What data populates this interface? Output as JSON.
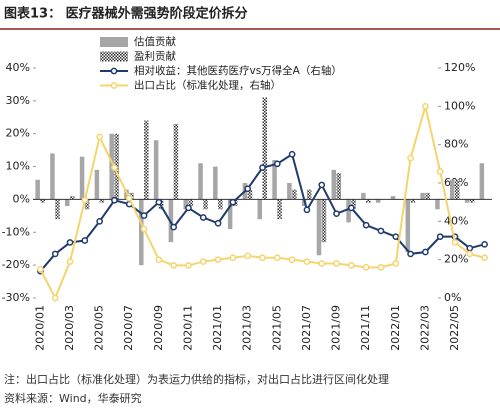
{
  "chart_data": {
    "type": "bar-line",
    "title": "图表13：  医疗器械外需强势阶段定价拆分",
    "categories": [
      "2020/01",
      null,
      "2020/03",
      null,
      "2020/05",
      null,
      "2020/07",
      null,
      "2020/09",
      null,
      "2020/11",
      null,
      "2021/01",
      null,
      "2021/03",
      null,
      "2021/05",
      null,
      "2021/07",
      null,
      "2021/09",
      null,
      "2021/11",
      null,
      "2022/01",
      null,
      "2022/03",
      null,
      "2022/05",
      null,
      null
    ],
    "series": [
      {
        "name": "估值贡献",
        "color": "#a6a6a6",
        "values": [
          6,
          14,
          -2,
          13,
          9,
          20,
          3,
          -20,
          18,
          -13,
          -3,
          11,
          10,
          -9,
          5,
          -6,
          12,
          5,
          -2,
          -17,
          9,
          -7,
          2,
          -1,
          1,
          -16,
          2,
          -3,
          6,
          -1,
          11
        ]
      },
      {
        "name": "盈利贡献",
        "color": "#333333",
        "values": [
          -1,
          -6,
          1,
          -3,
          -1,
          20,
          2,
          24,
          -3,
          23,
          -2,
          -3,
          -3,
          -2,
          3,
          31,
          -6,
          3,
          3,
          -13,
          8,
          -3,
          -1,
          0,
          0,
          -1,
          2,
          0,
          6,
          -1,
          0
        ]
      },
      {
        "name": "相对收益：其他医药医疗vs万得全A（右轴）",
        "color": "#1f3a6e",
        "axis": "y2",
        "values": [
          14,
          23,
          29,
          30,
          40,
          51,
          49,
          43,
          50,
          37,
          47,
          42,
          39,
          50,
          57,
          68,
          70,
          75,
          46,
          59,
          44,
          47,
          38,
          35,
          32,
          23,
          24,
          32,
          32,
          26,
          28
        ]
      },
      {
        "name": "出口占比（标准化处理，右轴）",
        "color": "#f5d46e",
        "axis": "y2",
        "values": [
          15,
          0,
          19,
          51,
          84,
          68,
          52,
          36,
          20,
          17,
          17,
          19,
          20,
          21,
          22,
          21,
          21,
          20,
          19,
          18,
          18,
          17,
          16,
          16,
          18,
          73,
          100,
          66,
          29,
          23,
          21
        ]
      }
    ],
    "ylim": [
      -30,
      40
    ],
    "yticks": [
      {
        "value": -30,
        "label": "-30%"
      },
      {
        "value": -20,
        "label": "-20%"
      },
      {
        "value": -10,
        "label": "-10%"
      },
      {
        "value": 0,
        "label": "0%"
      },
      {
        "value": 10,
        "label": "10%"
      },
      {
        "value": 20,
        "label": "20%"
      },
      {
        "value": 30,
        "label": "30%"
      },
      {
        "value": 40,
        "label": "40%"
      }
    ],
    "y2lim": [
      0,
      120
    ],
    "y2ticks": [
      {
        "value": 0,
        "label": "0%"
      },
      {
        "value": 20,
        "label": "20%"
      },
      {
        "value": 40,
        "label": "40%"
      },
      {
        "value": 60,
        "label": "60%"
      },
      {
        "value": 80,
        "label": "80%"
      },
      {
        "value": 100,
        "label": "100%"
      },
      {
        "value": 120,
        "label": "120%"
      }
    ],
    "notes": [
      "注：出口占比（标准化处理）为表运力供给的指标，对出口占比进行区间化处理",
      "资料来源：Wind，华泰研究"
    ]
  }
}
